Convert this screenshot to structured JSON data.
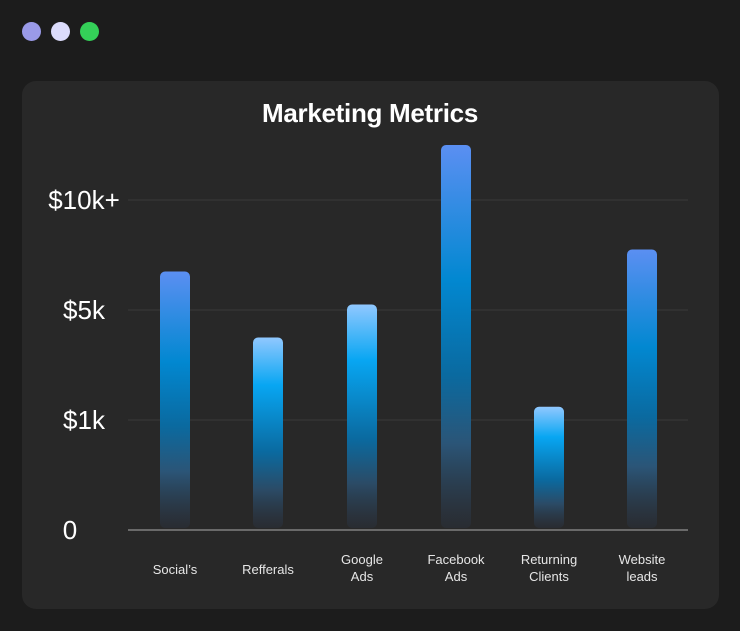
{
  "window": {
    "controls": [
      {
        "name": "window-dot-purple",
        "color": "#9a9ae8"
      },
      {
        "name": "window-dot-lavender",
        "color": "#dcdcfc"
      },
      {
        "name": "window-dot-green",
        "color": "#34d058"
      }
    ]
  },
  "chart_data": {
    "type": "bar",
    "title": "Marketing Metrics",
    "xlabel": "",
    "ylabel": "",
    "y_ticks": [
      "0",
      "$1k",
      "$5k",
      "$10k+"
    ],
    "y_scale": "ordinal levels: 0=0, 1=$1k, 2=$5k, 3=$10k+ (equally spaced)",
    "ylim": [
      0,
      3.5
    ],
    "grid": true,
    "legend": "none",
    "categories": [
      [
        "Social’s"
      ],
      [
        "Refferals"
      ],
      [
        "Google",
        "Ads"
      ],
      [
        "Facebook",
        "Ads"
      ],
      [
        "Returning",
        "Clients"
      ],
      [
        "Website",
        "leads"
      ]
    ],
    "values": [
      2.35,
      1.75,
      2.05,
      3.5,
      1.12,
      2.55
    ],
    "bar_style": [
      "blue",
      "sky",
      "sky",
      "blue",
      "sky",
      "blue"
    ]
  },
  "colors": {
    "page_bg": "#1c1c1c",
    "card_bg": "#282828",
    "grid": "#3a3a3a",
    "baseline": "#6a6a6a",
    "bar_blue_top": "#5b8ff2",
    "bar_blue_mid": "#0288d1",
    "bar_sky_top": "#90c8ff",
    "bar_sky_mid": "#08a6f2"
  }
}
